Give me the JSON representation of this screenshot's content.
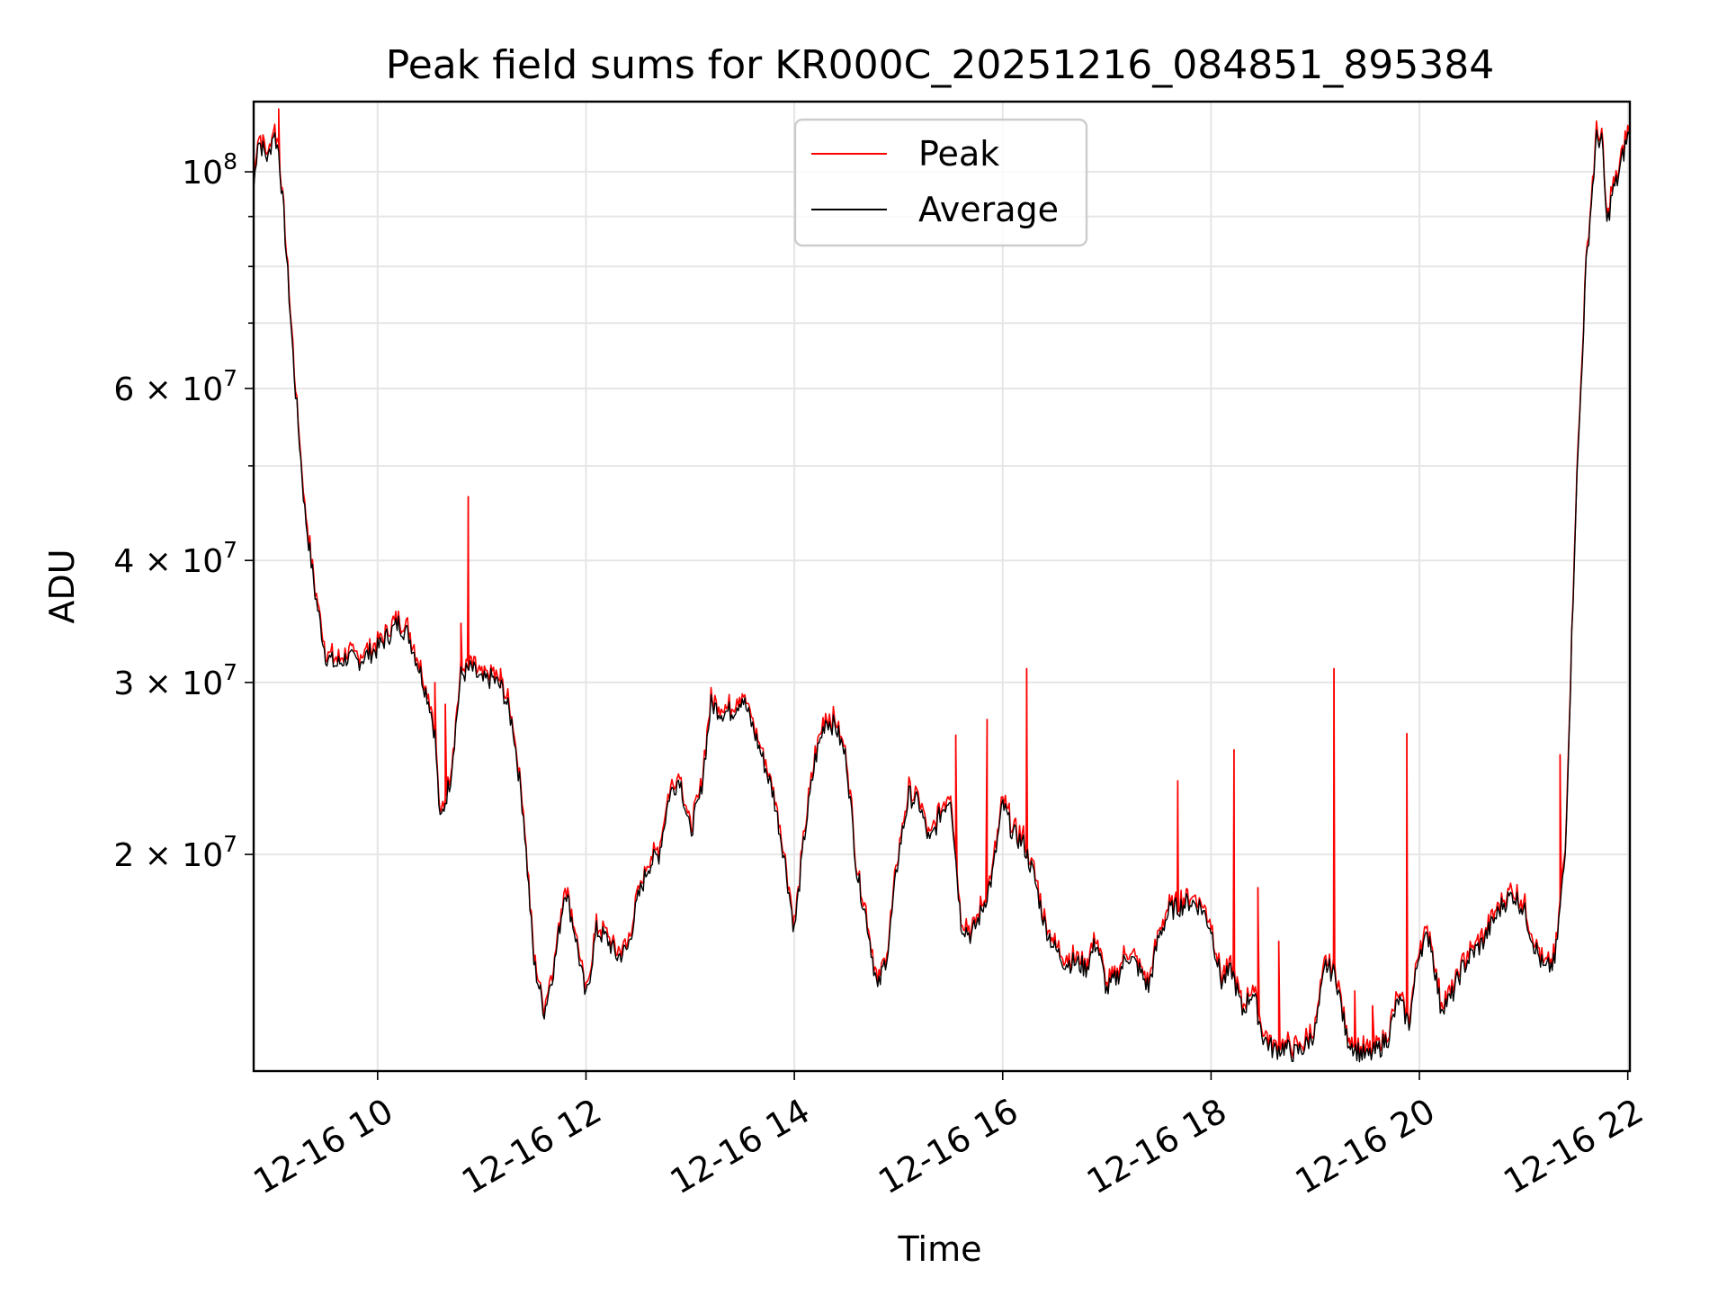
{
  "chart_data": {
    "type": "line",
    "title": "Peak field sums for KR000C_20251216_084851_895384",
    "xlabel": "Time",
    "ylabel": "ADU",
    "yscale": "log",
    "xlim_hours": [
      8.81,
      22.02
    ],
    "ylim": [
      12000000,
      118000000
    ],
    "x_ticks": [
      {
        "hour": 10,
        "label": "12-16 10"
      },
      {
        "hour": 12,
        "label": "12-16 12"
      },
      {
        "hour": 14,
        "label": "12-16 14"
      },
      {
        "hour": 16,
        "label": "12-16 16"
      },
      {
        "hour": 18,
        "label": "12-16 18"
      },
      {
        "hour": 20,
        "label": "12-16 20"
      },
      {
        "hour": 22,
        "label": "12-16 22"
      }
    ],
    "y_major_ticks": [
      {
        "value": 100000000,
        "mantissa": "",
        "exp": "8",
        "label": "10^8"
      },
      {
        "value": 60000000,
        "mantissa": "6",
        "exp": "7",
        "label": "6 × 10^7"
      },
      {
        "value": 40000000,
        "mantissa": "4",
        "exp": "7",
        "label": "4 × 10^7"
      },
      {
        "value": 30000000,
        "mantissa": "3",
        "exp": "7",
        "label": "3 × 10^7"
      },
      {
        "value": 20000000,
        "mantissa": "2",
        "exp": "7",
        "label": "2 × 10^7"
      }
    ],
    "y_minor_grid": [
      90000000,
      80000000,
      70000000,
      50000000
    ],
    "legend": {
      "position": "top-center",
      "entries": [
        {
          "name": "Peak",
          "color": "#ff0000"
        },
        {
          "name": "Average",
          "color": "#000000"
        }
      ]
    },
    "series": [
      {
        "name": "Average",
        "color": "#000000",
        "x": [
          8.81,
          8.85,
          8.95,
          9.0,
          9.05,
          9.1,
          9.2,
          9.3,
          9.4,
          9.5,
          9.6,
          9.7,
          9.8,
          9.9,
          10.0,
          10.1,
          10.2,
          10.3,
          10.4,
          10.5,
          10.55,
          10.6,
          10.7,
          10.8,
          10.9,
          11.0,
          11.1,
          11.2,
          11.3,
          11.4,
          11.5,
          11.6,
          11.7,
          11.8,
          11.9,
          12.0,
          12.1,
          12.2,
          12.3,
          12.4,
          12.5,
          12.6,
          12.7,
          12.8,
          12.9,
          13.0,
          13.1,
          13.2,
          13.3,
          13.4,
          13.5,
          13.6,
          13.7,
          13.8,
          13.9,
          14.0,
          14.1,
          14.2,
          14.3,
          14.4,
          14.5,
          14.6,
          14.7,
          14.8,
          14.9,
          15.0,
          15.1,
          15.2,
          15.3,
          15.4,
          15.5,
          15.6,
          15.7,
          15.8,
          15.9,
          16.0,
          16.1,
          16.2,
          16.3,
          16.4,
          16.5,
          16.6,
          16.7,
          16.8,
          16.9,
          17.0,
          17.1,
          17.2,
          17.3,
          17.4,
          17.5,
          17.6,
          17.7,
          17.8,
          17.9,
          18.0,
          18.1,
          18.2,
          18.3,
          18.4,
          18.5,
          18.6,
          18.7,
          18.8,
          18.9,
          19.0,
          19.1,
          19.2,
          19.3,
          19.4,
          19.5,
          19.6,
          19.7,
          19.8,
          19.9,
          20.0,
          20.1,
          20.2,
          20.3,
          20.4,
          20.5,
          20.6,
          20.7,
          20.8,
          20.9,
          21.0,
          21.1,
          21.2,
          21.3,
          21.4,
          21.5,
          21.6,
          21.7,
          21.75,
          21.8,
          21.85,
          21.9,
          22.0,
          22.02
        ],
        "values": [
          96000000,
          108000000,
          103000000,
          110000000,
          105000000,
          90000000,
          62000000,
          45000000,
          37000000,
          32000000,
          31200000,
          31800000,
          31500000,
          32000000,
          32500000,
          33500000,
          34500000,
          33500000,
          31000000,
          28500000,
          26500000,
          21500000,
          24000000,
          30500000,
          31000000,
          30000000,
          30300000,
          29500000,
          27000000,
          22000000,
          15500000,
          13800000,
          15500000,
          18500000,
          16500000,
          14200000,
          16700000,
          16400000,
          15700000,
          16000000,
          18000000,
          19500000,
          20000000,
          23000000,
          24000000,
          21000000,
          23000000,
          28500000,
          28000000,
          28000000,
          29000000,
          27000000,
          25000000,
          23000000,
          20000000,
          16700000,
          21000000,
          25000000,
          27500000,
          27000000,
          25000000,
          19200000,
          17000000,
          14500000,
          16000000,
          20000000,
          23000000,
          22500000,
          20500000,
          22000000,
          23000000,
          17000000,
          16500000,
          17500000,
          19000000,
          22500000,
          21000000,
          20500000,
          19000000,
          17000000,
          16000000,
          15500000,
          15500000,
          15300000,
          16300000,
          14500000,
          15000000,
          15800000,
          15300000,
          14600000,
          16500000,
          17500000,
          17700000,
          17900000,
          17700000,
          16800000,
          14800000,
          15200000,
          13800000,
          14500000,
          13000000,
          12600000,
          12700000,
          12500000,
          12700000,
          13200000,
          15400000,
          15000000,
          13000000,
          12600000,
          12400000,
          12600000,
          13000000,
          14200000,
          13400000,
          16000000,
          16500000,
          14000000,
          14200000,
          15200000,
          15800000,
          16200000,
          17000000,
          17800000,
          18200000,
          17600000,
          16200000,
          15200000,
          15500000,
          20000000,
          45000000,
          80000000,
          108000000,
          108000000,
          88000000,
          95000000,
          98000000,
          109000000,
          108000000
        ]
      },
      {
        "name": "Peak",
        "color": "#ff0000",
        "note": "tracks Average closely, with isolated upward spikes",
        "spikes": [
          {
            "hour": 9.05,
            "value": 116000000
          },
          {
            "hour": 10.55,
            "value": 30000000
          },
          {
            "hour": 10.65,
            "value": 28500000
          },
          {
            "hour": 10.8,
            "value": 34500000
          },
          {
            "hour": 10.87,
            "value": 46500000
          },
          {
            "hour": 11.18,
            "value": 31000000
          },
          {
            "hour": 15.55,
            "value": 26500000
          },
          {
            "hour": 15.85,
            "value": 27500000
          },
          {
            "hour": 16.23,
            "value": 31000000
          },
          {
            "hour": 17.68,
            "value": 23800000
          },
          {
            "hour": 18.22,
            "value": 25600000
          },
          {
            "hour": 18.45,
            "value": 18500000
          },
          {
            "hour": 18.65,
            "value": 16300000
          },
          {
            "hour": 19.18,
            "value": 31000000
          },
          {
            "hour": 19.38,
            "value": 14500000
          },
          {
            "hour": 19.55,
            "value": 14000000
          },
          {
            "hour": 19.88,
            "value": 26600000
          },
          {
            "hour": 21.35,
            "value": 25300000
          }
        ]
      }
    ]
  }
}
